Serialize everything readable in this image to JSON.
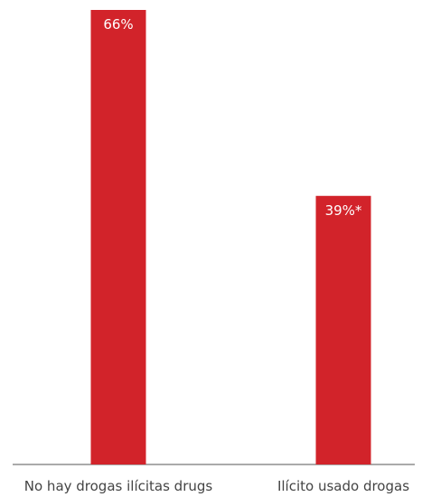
{
  "chart_data": {
    "type": "bar",
    "categories": [
      "No hay drogas ilícitas drugs",
      "Ilícito usado drogas"
    ],
    "values": [
      66,
      39
    ],
    "value_labels": [
      "66%",
      "39%*"
    ],
    "title": "",
    "xlabel": "",
    "ylabel": "",
    "ylim": [
      0,
      66
    ],
    "grid": false,
    "legend": "none",
    "colors": {
      "bar": "#d2232a",
      "axis": "#555555",
      "label": "#444444",
      "value_label": "#ffffff"
    }
  }
}
